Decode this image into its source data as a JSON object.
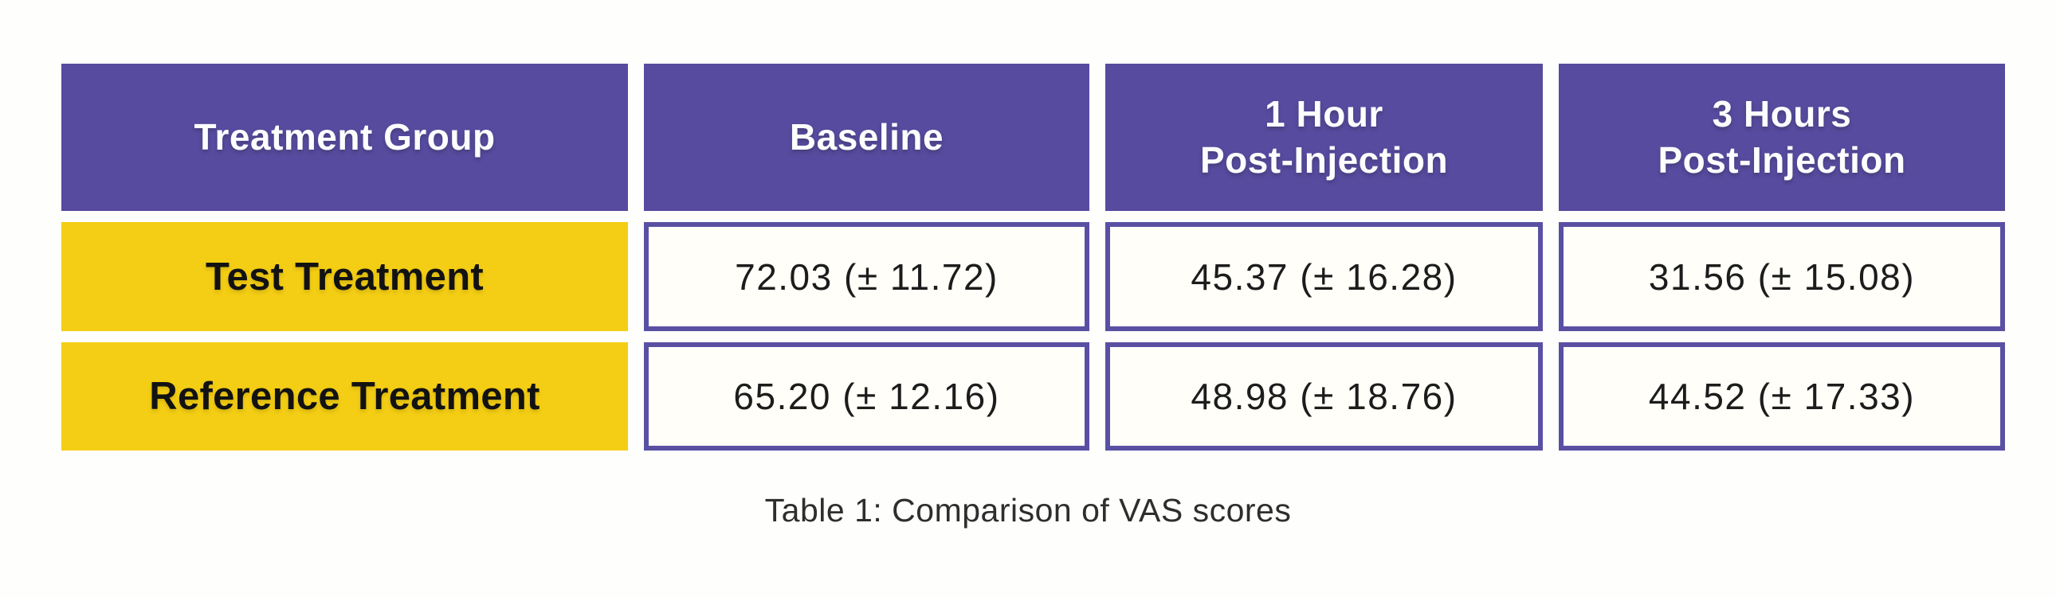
{
  "colors": {
    "header_bg": "#564B9F",
    "header_text": "#FDFDFD",
    "row_label_bg": "#F4CE14",
    "value_cell_bg": "#FFFEF8",
    "value_cell_border": "#5A50A3",
    "body_text": "#1C1C1C",
    "page_bg": "#FEFEFC"
  },
  "table": {
    "caption": "Table 1: Comparison of VAS scores",
    "columns": [
      "Treatment Group",
      "Baseline",
      "1 Hour\nPost-Injection",
      "3 Hours\nPost-Injection"
    ],
    "rows": [
      {
        "label": "Test Treatment",
        "values": [
          "72.03 (± 11.72)",
          "45.37 (± 16.28)",
          "31.56 (± 15.08)"
        ]
      },
      {
        "label": "Reference Treatment",
        "values": [
          "65.20 (± 12.16)",
          "48.98 (± 18.76)",
          "44.52 (± 17.33)"
        ]
      }
    ]
  },
  "chart_data": {
    "type": "table",
    "title": "Table 1: Comparison of VAS scores",
    "columns": [
      "Treatment Group",
      "Baseline",
      "1 Hour Post-Injection",
      "3 Hours Post-Injection"
    ],
    "rows": [
      [
        "Test Treatment",
        "72.03 (± 11.72)",
        "45.37 (± 16.28)",
        "31.56 (± 15.08)"
      ],
      [
        "Reference Treatment",
        "65.20 (± 12.16)",
        "48.98 (± 18.76)",
        "44.52 (± 17.33)"
      ]
    ],
    "values": {
      "test_treatment": {
        "baseline_mean": 72.03,
        "baseline_sd": 11.72,
        "one_hour_mean": 45.37,
        "one_hour_sd": 16.28,
        "three_hours_mean": 31.56,
        "three_hours_sd": 15.08
      },
      "reference_treatment": {
        "baseline_mean": 65.2,
        "baseline_sd": 12.16,
        "one_hour_mean": 48.98,
        "one_hour_sd": 18.76,
        "three_hours_mean": 44.52,
        "three_hours_sd": 17.33
      }
    },
    "measure": "VAS score, mean (± SD)"
  }
}
